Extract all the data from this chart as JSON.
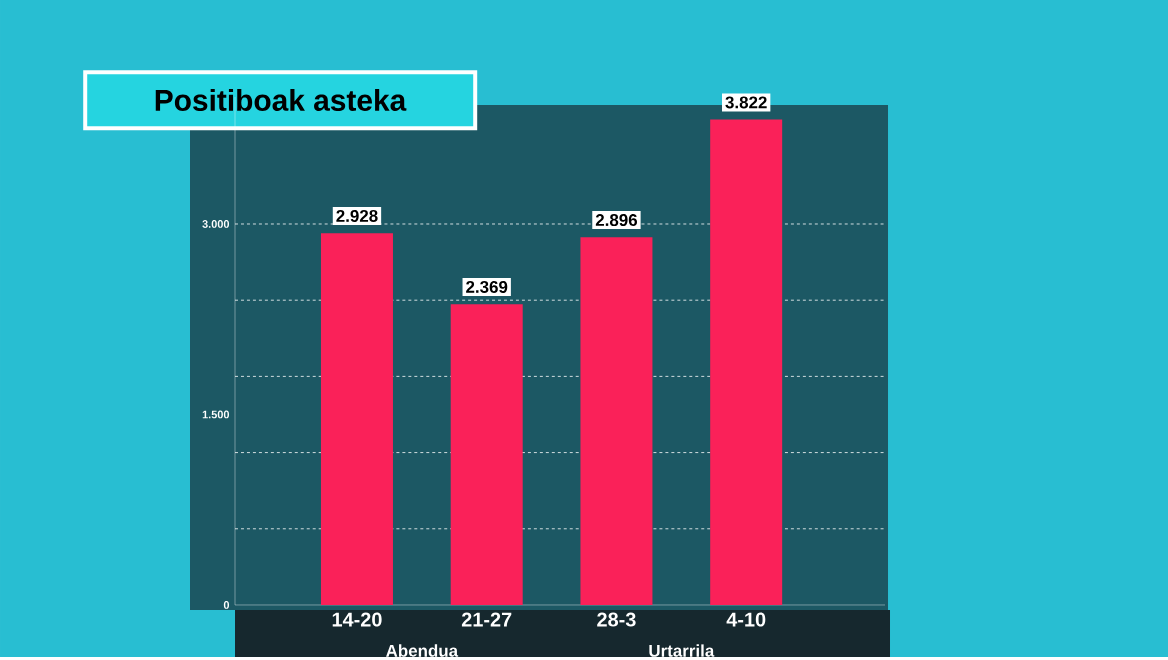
{
  "chart_data": {
    "type": "bar",
    "title": "Positiboak asteka",
    "categories": [
      "14-20",
      "21-27",
      "28-3",
      "4-10"
    ],
    "values": [
      2928,
      2369,
      2896,
      3822
    ],
    "color": "#fa2159",
    "ylim": [
      0,
      4000
    ],
    "yticks": [
      {
        "value": 0,
        "label": "0"
      },
      {
        "value": 1500,
        "label": "1.500"
      },
      {
        "value": 3000,
        "label": "3.000"
      }
    ],
    "ref_lines": [
      {
        "axis": "y",
        "value": 600,
        "line_style": "dashed",
        "color": "#ffffff"
      },
      {
        "axis": "y",
        "value": 1200,
        "line_style": "dashed",
        "color": "#ffffff"
      },
      {
        "axis": "y",
        "value": 1800,
        "line_style": "dashed",
        "color": "#ffffff"
      },
      {
        "axis": "y",
        "value": 2400,
        "line_style": "dashed",
        "color": "#ffffff"
      },
      {
        "axis": "y",
        "value": 3000,
        "line_style": "dashed",
        "color": "#ffffff"
      }
    ],
    "value_labels": [
      "2.928",
      "2.369",
      "2.896",
      "3.822"
    ],
    "annotations": [
      "Abendua",
      "Urtarrila"
    ]
  }
}
